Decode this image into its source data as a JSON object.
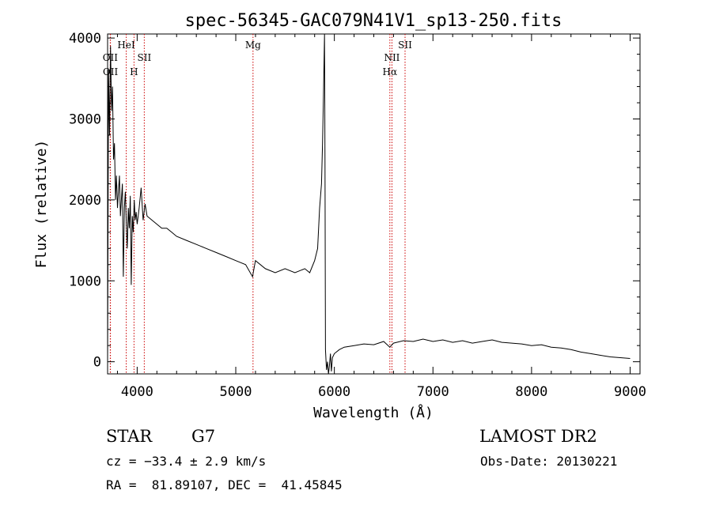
{
  "chart_data": {
    "type": "line",
    "title": "spec-56345-GAC079N41V1_sp13-250.fits",
    "xlabel": "Wavelength (Å)",
    "ylabel": "Flux (relative)",
    "xlim": [
      3700,
      9100
    ],
    "ylim": [
      -150,
      4050
    ],
    "x_ticks": [
      4000,
      5000,
      6000,
      7000,
      8000,
      9000
    ],
    "x_tick_labels": [
      "4000",
      "5000",
      "6000",
      "7000",
      "8000",
      "9000"
    ],
    "y_ticks": [
      0,
      1000,
      2000,
      3000,
      4000
    ],
    "y_tick_labels": [
      "0",
      "1000",
      "2000",
      "3000",
      "4000"
    ],
    "grid": false,
    "line_color": "#000000",
    "marker_color": "#cc0000",
    "series": [
      {
        "x": [
          3700,
          3710,
          3720,
          3730,
          3740,
          3750,
          3760,
          3770,
          3780,
          3790,
          3800,
          3810,
          3820,
          3830,
          3840,
          3850,
          3860,
          3870,
          3880,
          3890,
          3900,
          3910,
          3920,
          3930,
          3940,
          3950,
          3960,
          3970,
          3980,
          3990,
          4000,
          4020,
          4040,
          4060,
          4080,
          4100,
          4150,
          4200,
          4250,
          4300,
          4350,
          4400,
          4500,
          4600,
          4700,
          4800,
          4900,
          5000,
          5100,
          5170,
          5200,
          5300,
          5400,
          5500,
          5600,
          5700,
          5750,
          5800,
          5830,
          5850,
          5870,
          5880,
          5890,
          5900,
          5905,
          5910,
          5920,
          5930,
          5940,
          5950,
          5960,
          5970,
          5980,
          6000,
          6050,
          6100,
          6200,
          6300,
          6400,
          6500,
          6562,
          6600,
          6700,
          6800,
          6900,
          7000,
          7100,
          7200,
          7300,
          7400,
          7500,
          7600,
          7700,
          7800,
          7900,
          8000,
          8100,
          8200,
          8300,
          8400,
          8500,
          8600,
          8700,
          8800,
          8900,
          9000
        ],
        "y": [
          0,
          3600,
          2800,
          3900,
          3100,
          3400,
          2500,
          2700,
          2000,
          2300,
          1900,
          2100,
          2300,
          1800,
          2000,
          2200,
          1050,
          1900,
          2100,
          1700,
          1400,
          1900,
          1650,
          2050,
          950,
          1800,
          1600,
          2000,
          1750,
          1850,
          1700,
          1900,
          2150,
          1750,
          1950,
          1800,
          1750,
          1700,
          1650,
          1650,
          1600,
          1550,
          1500,
          1450,
          1400,
          1350,
          1300,
          1250,
          1200,
          1050,
          1250,
          1150,
          1100,
          1150,
          1100,
          1150,
          1100,
          1250,
          1400,
          1900,
          2200,
          2700,
          3300,
          4050,
          2500,
          150,
          -100,
          0,
          -150,
          -50,
          100,
          -120,
          50,
          100,
          150,
          180,
          200,
          220,
          210,
          250,
          180,
          230,
          260,
          250,
          280,
          250,
          270,
          240,
          260,
          230,
          250,
          270,
          240,
          230,
          220,
          200,
          210,
          180,
          170,
          150,
          120,
          100,
          80,
          60,
          50,
          40
        ]
      }
    ],
    "line_markers": [
      {
        "x": 3727,
        "label": "OII"
      },
      {
        "x": 3729,
        "label": "OII"
      },
      {
        "x": 3889,
        "label": "HeI"
      },
      {
        "x": 3968,
        "label": "H"
      },
      {
        "x": 4072,
        "label": "SII"
      },
      {
        "x": 5175,
        "label": "Mg"
      },
      {
        "x": 6563,
        "label": "Hα"
      },
      {
        "x": 6584,
        "label": "NII"
      },
      {
        "x": 6717,
        "label": "SII"
      }
    ]
  },
  "info": {
    "object_class": "STAR",
    "subclass": "G7",
    "survey": "LAMOST DR2",
    "redshift": "cz = −33.4 ± 2.9 km/s",
    "obs_date": "Obs-Date: 20130221",
    "coords": "RA =  81.89107, DEC =  41.45845"
  }
}
